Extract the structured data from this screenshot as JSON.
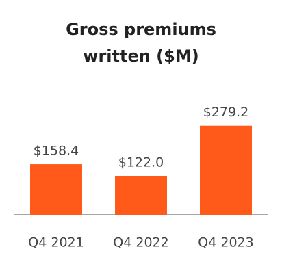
{
  "chart_data": {
    "type": "bar",
    "title": "Gross premiums written ($M)",
    "categories": [
      "Q4 2021",
      "Q4 2022",
      "Q4 2023"
    ],
    "values": [
      158.4,
      122.0,
      279.2
    ],
    "value_labels": [
      "$158.4",
      "$122.0",
      "$279.2"
    ],
    "color": "#ff5a1a",
    "ylim": [
      0,
      300
    ]
  }
}
